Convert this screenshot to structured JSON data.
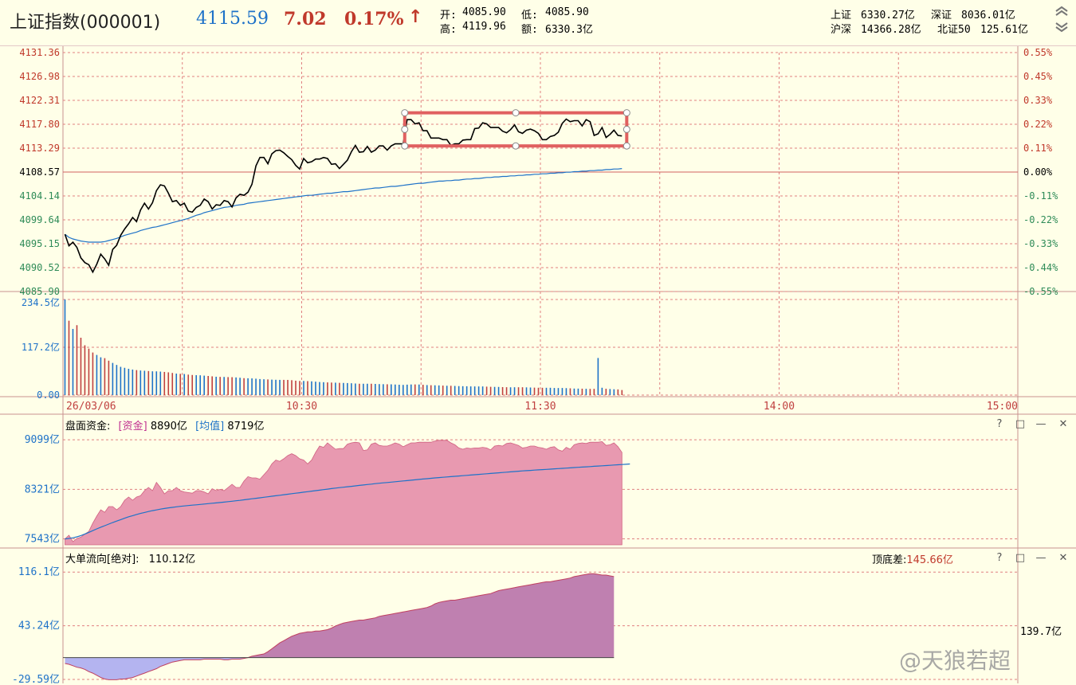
{
  "header": {
    "title": "上证指数(000001)",
    "price": "4115.59",
    "change": "7.02",
    "change_pct": "0.17%",
    "arrow": "↑",
    "open_label": "开:",
    "open": "4085.90",
    "low_label": "低:",
    "low": "4085.90",
    "high_label": "高:",
    "high": "4119.96",
    "amount_label": "额:",
    "amount": "6330.3亿",
    "sh_label": "上证",
    "sh": "6330.27亿",
    "sz_label": "深证",
    "sz": "8036.01亿",
    "hs_label": "沪深",
    "hs": "14366.28亿",
    "bei_label": "北证50",
    "bei": "125.61亿"
  },
  "colors": {
    "bg": "#FFFFE8",
    "grid": "#E08080",
    "price_line": "#000000",
    "avg_line": "#1E72C8",
    "up": "#C0392B",
    "down": "#2E8B57",
    "volume": "#1E72C8",
    "capital_fill": "#E899B0",
    "capital_avg": "#1E72C8",
    "flow_pos": "#BF80B0",
    "flow_neg": "#B4B4F0",
    "highlight_box": "#E06060"
  },
  "chart_data": [
    {
      "type": "line",
      "name": "price",
      "ylim": [
        4085.9,
        4131.36
      ],
      "base": 4108.57,
      "price_ticks": [
        "4131.36",
        "4126.98",
        "4122.31",
        "4117.80",
        "4113.29",
        "4108.57",
        "4104.14",
        "4099.64",
        "4095.15",
        "4090.52",
        "4085.90"
      ],
      "pct_ticks": [
        "0.55%",
        "0.45%",
        "0.33%",
        "0.22%",
        "0.11%",
        "0.00%",
        "-0.11%",
        "-0.22%",
        "-0.33%",
        "-0.44%",
        "-0.55%"
      ],
      "x_labels": [
        "26/03/06",
        "10:30",
        "11:30",
        "14:00",
        "15:00"
      ],
      "x_minutes": 240,
      "series": [
        {
          "values": [
            4096.8,
            4094.6,
            4095.3,
            4094.3,
            4092.3,
            4091.4,
            4091.0,
            4089.6,
            4091.1,
            4093.0,
            4092.1,
            4090.9,
            4093.9,
            4094.7,
            4096.6,
            4097.8,
            4098.8,
            4100.0,
            4099.2,
            4101.4,
            4102.7,
            4101.6,
            4102.8,
            4105.1,
            4106.2,
            4106.0,
            4104.6,
            4103.0,
            4103.2,
            4102.3,
            4102.7,
            4101.2,
            4101.0,
            4101.9,
            4102.3,
            4103.5,
            4103.0,
            4101.6,
            4102.4,
            4102.3,
            4103.2,
            4103.0,
            4102.0,
            4103.7,
            4104.4,
            4104.2,
            4104.8,
            4106.3,
            4109.8,
            4111.4,
            4111.4,
            4110.2,
            4112.1,
            4112.7,
            4112.8,
            4112.3,
            4111.6,
            4111.0,
            4109.9,
            4109.2,
            4111.2,
            4110.4,
            4110.6,
            4111.1,
            4111.1,
            4111.4,
            4111.2,
            4110.1,
            4110.2,
            4109.3,
            4110.1,
            4110.9,
            4112.5,
            4113.7,
            4112.4,
            4112.5,
            4113.5,
            4112.4,
            4112.8,
            4113.6,
            4113.6,
            4112.8,
            4113.6,
            4114.0,
            4114.0,
            4114.0,
            4118.6,
            4118.6,
            4117.8,
            4118.0,
            4116.5,
            4116.5,
            4115.1,
            4115.1,
            4115.1,
            4114.8,
            4114.8,
            4113.7,
            4114.0,
            4114.0,
            4114.7,
            4114.8,
            4114.8,
            4116.9,
            4117.0,
            4118.0,
            4117.8,
            4117.1,
            4117.1,
            4117.1,
            4116.4,
            4116.1,
            4116.7,
            4117.6,
            4116.3,
            4116.0,
            4116.6,
            4116.8,
            4116.5,
            4116.0,
            4114.8,
            4114.8,
            4115.4,
            4115.6,
            4116.2,
            4117.9,
            4118.7,
            4118.2,
            4118.4,
            4118.4,
            4117.4,
            4118.6,
            4118.2,
            4115.6,
            4115.9,
            4117.1,
            4115.2,
            4115.8,
            4116.6,
            4115.6,
            4115.5
          ],
          "avg": [
            4096.8,
            4096.2,
            4095.9,
            4095.7,
            4095.5,
            4095.4,
            4095.3,
            4095.3,
            4095.3,
            4095.3,
            4095.4,
            4095.6,
            4095.8,
            4096.0,
            4096.3,
            4096.6,
            4096.8,
            4097.0,
            4097.2,
            4097.5,
            4097.7,
            4097.9,
            4098.1,
            4098.2,
            4098.4,
            4098.6,
            4098.8,
            4099.0,
            4099.2,
            4099.4,
            4099.6,
            4099.8,
            4100.1,
            4100.4,
            4100.6,
            4100.9,
            4101.1,
            4101.3,
            4101.5,
            4101.7,
            4101.9,
            4102.0,
            4102.1,
            4102.3,
            4102.4,
            4102.5,
            4102.7,
            4102.8,
            4102.9,
            4103.0,
            4103.1,
            4103.2,
            4103.3,
            4103.4,
            4103.5,
            4103.6,
            4103.7,
            4103.8,
            4103.9,
            4104.0,
            4104.1,
            4104.2,
            4104.2,
            4104.3,
            4104.4,
            4104.5,
            4104.6,
            4104.6,
            4104.7,
            4104.8,
            4104.9,
            4104.9,
            4105.0,
            4105.1,
            4105.2,
            4105.3,
            4105.4,
            4105.5,
            4105.6,
            4105.6,
            4105.7,
            4105.8,
            4105.9,
            4105.9,
            4106.0,
            4106.1,
            4106.2,
            4106.3,
            4106.4,
            4106.5,
            4106.5,
            4106.6,
            4106.7,
            4106.8,
            4106.9,
            4106.9,
            4107.0,
            4107.0,
            4107.1,
            4107.1,
            4107.2,
            4107.3,
            4107.3,
            4107.4,
            4107.4,
            4107.5,
            4107.6,
            4107.6,
            4107.7,
            4107.7,
            4107.8,
            4107.8,
            4107.9,
            4107.9,
            4108.0,
            4108.0,
            4108.1,
            4108.1,
            4108.2,
            4108.2,
            4108.3,
            4108.3,
            4108.4,
            4108.4,
            4108.5,
            4108.5,
            4108.6,
            4108.6,
            4108.7,
            4108.7,
            4108.8,
            4108.8,
            4108.9,
            4108.9,
            4109.0,
            4109.0,
            4109.1,
            4109.1,
            4109.2,
            4109.2,
            4109.3
          ]
        }
      ]
    },
    {
      "type": "bar",
      "name": "volume",
      "unit": "亿",
      "ylim": [
        0,
        234.5
      ],
      "ticks": [
        "234.5亿",
        "117.2亿",
        "0.00"
      ],
      "values": [
        234.5,
        182.4,
        162.3,
        171.5,
        140.7,
        122.2,
        113.9,
        104.4,
        98.5,
        92.7,
        90.6,
        84.4,
        78.9,
        74.0,
        69.3,
        66.9,
        64.5,
        62.6,
        61.3,
        60.3,
        59.7,
        59.0,
        58.3,
        58.2,
        57.6,
        56.8,
        55.8,
        54.3,
        52.7,
        52.1,
        51.7,
        50.2,
        49.3,
        48.8,
        48.5,
        47.7,
        46.9,
        46.0,
        45.0,
        44.6,
        44.5,
        44.1,
        43.9,
        43.3,
        42.5,
        41.5,
        41.2,
        40.9,
        40.2,
        39.3,
        38.8,
        38.4,
        37.9,
        37.5,
        37.3,
        37.3,
        37.2,
        36.5,
        35.3,
        34.6,
        34.6,
        34.2,
        33.7,
        32.9,
        32.0,
        31.6,
        31.1,
        30.7,
        30.4,
        30.0,
        29.8,
        29.5,
        29.0,
        28.4,
        27.8,
        27.8,
        27.8,
        27.8,
        27.4,
        26.9,
        26.7,
        26.5,
        26.4,
        25.9,
        25.4,
        25.0,
        25.6,
        26.0,
        26.1,
        25.9,
        25.3,
        24.6,
        24.2,
        24.0,
        23.7,
        23.3,
        22.9,
        22.8,
        22.4,
        22.0,
        21.8,
        21.6,
        21.3,
        21.2,
        21.2,
        21.2,
        20.7,
        20.3,
        20.1,
        20.0,
        19.6,
        19.3,
        19.1,
        19.2,
        19.2,
        19.2,
        18.9,
        18.6,
        18.3,
        18.0,
        17.9,
        17.9,
        17.9,
        17.4,
        17.3,
        17.4,
        17.1,
        16.6,
        16.0,
        15.9,
        15.7,
        15.4,
        15.2,
        15.3,
        91.0,
        18.0,
        15.5,
        14.9,
        14.3,
        13.9,
        12.4
      ]
    },
    {
      "type": "area",
      "name": "盘面资金",
      "title": "盘面资金:",
      "legend": [
        {
          "label": "[资金]",
          "value": "8890亿"
        },
        {
          "label": "[均值]",
          "value": "8719亿"
        }
      ],
      "ylim": [
        7450,
        9200
      ],
      "ticks": [
        "9099亿",
        "8321亿",
        "7543亿"
      ],
      "tick_values": [
        9099,
        8321,
        7543
      ],
      "values": [
        7543,
        7600,
        7500,
        7550,
        7570,
        7620,
        7660,
        7790,
        7900,
        8000,
        7960,
        8050,
        8050,
        8000,
        8050,
        8150,
        8200,
        8150,
        8200,
        8220,
        8300,
        8350,
        8300,
        8430,
        8350,
        8250,
        8300,
        8300,
        8350,
        8300,
        8280,
        8270,
        8260,
        8300,
        8300,
        8280,
        8250,
        8330,
        8300,
        8320,
        8300,
        8350,
        8400,
        8350,
        8350,
        8450,
        8520,
        8500,
        8500,
        8480,
        8550,
        8620,
        8720,
        8780,
        8760,
        8800,
        8850,
        8880,
        8850,
        8800,
        8780,
        8720,
        8780,
        8900,
        9000,
        8980,
        9050,
        9000,
        8950,
        8960,
        8960,
        9030,
        9050,
        9060,
        9050,
        8930,
        8940,
        9030,
        9050,
        9010,
        9000,
        9000,
        9020,
        9050,
        9030,
        8990,
        9020,
        9050,
        9050,
        9060,
        9060,
        9060,
        9060,
        9080,
        9090,
        9090,
        9090,
        9050,
        9020,
        8970,
        8950,
        8970,
        8960,
        8970,
        8970,
        8980,
        8970,
        8940,
        9000,
        9010,
        9000,
        9040,
        9050,
        9030,
        9010,
        8970,
        8980,
        9000,
        9000,
        8980,
        8970,
        8950,
        8980,
        8990,
        8940,
        8920,
        8980,
        8950,
        9020,
        9040,
        9050,
        9040,
        9060,
        9060,
        9060,
        9070,
        9010,
        9020,
        9050,
        8990,
        8900
      ],
      "avg": [
        7543,
        7550,
        7560,
        7575,
        7595,
        7620,
        7645,
        7672,
        7700,
        7726,
        7750,
        7775,
        7800,
        7822,
        7845,
        7868,
        7890,
        7908,
        7926,
        7942,
        7958,
        7973,
        7986,
        7998,
        8010,
        8020,
        8030,
        8038,
        8046,
        8054,
        8060,
        8066,
        8072,
        8078,
        8084,
        8090,
        8096,
        8102,
        8108,
        8114,
        8120,
        8127,
        8134,
        8141,
        8148,
        8156,
        8164,
        8172,
        8180,
        8188,
        8196,
        8204,
        8212,
        8220,
        8228,
        8236,
        8244,
        8252,
        8260,
        8268,
        8276,
        8284,
        8292,
        8300,
        8308,
        8316,
        8324,
        8332,
        8340,
        8347,
        8354,
        8361,
        8368,
        8375,
        8382,
        8389,
        8396,
        8403,
        8410,
        8416,
        8422,
        8428,
        8434,
        8440,
        8446,
        8452,
        8458,
        8464,
        8470,
        8476,
        8482,
        8488,
        8494,
        8500,
        8505,
        8510,
        8515,
        8520,
        8525,
        8530,
        8535,
        8540,
        8545,
        8550,
        8555,
        8560,
        8565,
        8570,
        8575,
        8580,
        8585,
        8590,
        8595,
        8600,
        8605,
        8610,
        8614,
        8618,
        8622,
        8626,
        8630,
        8634,
        8638,
        8642,
        8646,
        8650,
        8654,
        8658,
        8662,
        8666,
        8670,
        8674,
        8678,
        8682,
        8686,
        8690,
        8694,
        8698,
        8702,
        8706,
        8710,
        8714,
        8719
      ]
    },
    {
      "type": "area",
      "name": "大单流向",
      "title": "大单流向[绝对]:",
      "value": "110.12亿",
      "diff_label": "顶底差:",
      "diff_value": "145.66亿",
      "side_value": "139.7亿",
      "ylim": [
        -29.59,
        125
      ],
      "ticks": [
        "116.1亿",
        "43.24亿",
        "-29.59亿"
      ],
      "tick_values": [
        116.1,
        43.24,
        -29.59
      ],
      "values": [
        -8,
        -9,
        -11,
        -13,
        -14,
        -16,
        -19,
        -21,
        -24,
        -27,
        -29,
        -30,
        -30,
        -30,
        -29,
        -29,
        -28,
        -27,
        -25,
        -23,
        -21,
        -19,
        -17,
        -15,
        -12,
        -10,
        -8,
        -6,
        -5,
        -4,
        -3,
        -3,
        -3,
        -3,
        -3,
        -2,
        -2,
        -2,
        -2,
        -2,
        -3,
        -3,
        -2,
        -2,
        -2,
        -1,
        0,
        2,
        3,
        4,
        5,
        8,
        12,
        16,
        20,
        23,
        26,
        29,
        31,
        33,
        34,
        35,
        35,
        36,
        36,
        37,
        38,
        40,
        43,
        45,
        47,
        48,
        49,
        50,
        51,
        51,
        52,
        53,
        54,
        56,
        57,
        58,
        59,
        60,
        61,
        62,
        63,
        64,
        65,
        66,
        67,
        68,
        70,
        73,
        75,
        76,
        77,
        78,
        78,
        79,
        80,
        81,
        82,
        83,
        84,
        85,
        86,
        87,
        89,
        91,
        92,
        93,
        94,
        95,
        96,
        97,
        98,
        99,
        100,
        101,
        102,
        103,
        103,
        104,
        105,
        106,
        107,
        108,
        110,
        111,
        112,
        113,
        114,
        114,
        113,
        112,
        112,
        111,
        110
      ]
    }
  ],
  "panel_controls": {
    "help": "?",
    "restore": "□",
    "minimize": "—",
    "close": "✕"
  },
  "watermark": "@天狼若超"
}
